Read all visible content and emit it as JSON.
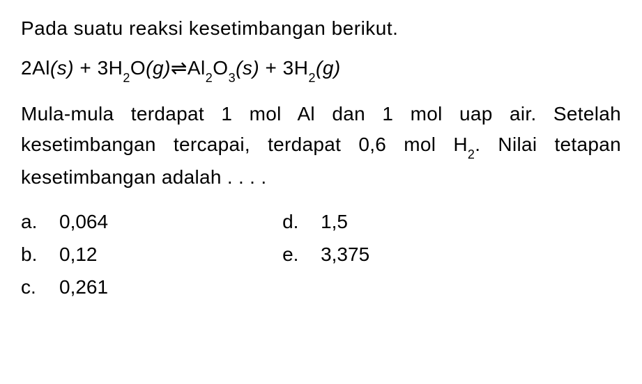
{
  "intro": "Pada suatu reaksi kesetimbangan berikut.",
  "equation": {
    "lhs_coef1": "2",
    "lhs_species1": "Al",
    "lhs_state1": "(s)",
    "plus1": " + ",
    "lhs_coef2": "3",
    "lhs_species2": "H",
    "lhs_sub2a": "2",
    "lhs_species2b": "O",
    "lhs_state2": "(g)",
    "arrow": " ⇌ ",
    "rhs_species1": "Al",
    "rhs_sub1a": "2",
    "rhs_species1b": "O",
    "rhs_sub1b": "3",
    "rhs_state1": "(s)",
    "plus2": " + ",
    "rhs_coef2": "3",
    "rhs_species2": "H",
    "rhs_sub2": "2",
    "rhs_state2": "(g)"
  },
  "body": {
    "part1": "Mula-mula terdapat 1 mol Al dan 1 mol uap air. Setelah kesetimbangan tercapai, terdapat 0,6 mol H",
    "sub": "2",
    "part2": ". Nilai tetapan kesetimbangan adalah . . . ."
  },
  "options": {
    "a_label": "a.",
    "a_value": "0,064",
    "b_label": "b.",
    "b_value": "0,12",
    "c_label": "c.",
    "c_value": "0,261",
    "d_label": "d.",
    "d_value": "1,5",
    "e_label": "e.",
    "e_value": "3,375"
  },
  "colors": {
    "background": "#ffffff",
    "text": "#000000"
  },
  "typography": {
    "base_fontsize": 28,
    "sub_fontsize": 18,
    "font_family": "Arial, Helvetica, sans-serif"
  }
}
